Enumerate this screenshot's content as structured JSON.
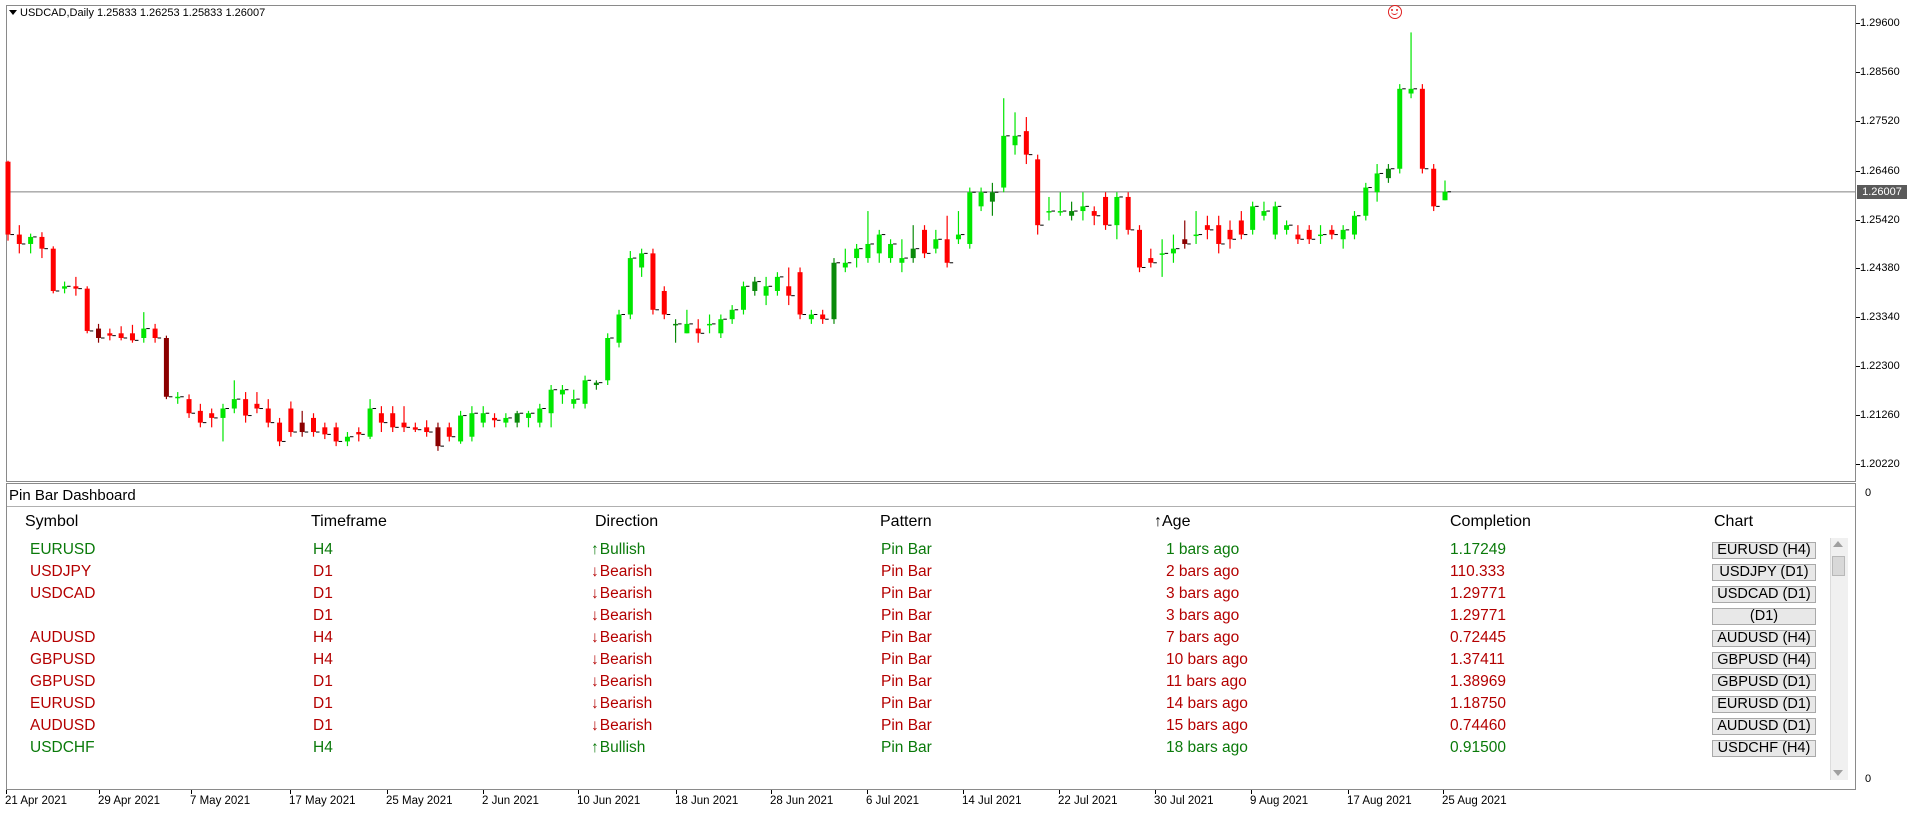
{
  "chart": {
    "header": "USDCAD,Daily  1.25833 1.26253 1.25833 1.26007",
    "current_price": "1.26007",
    "price_ticks": [
      "1.29600",
      "1.28560",
      "1.27520",
      "1.26460",
      "1.25420",
      "1.24380",
      "1.23340",
      "1.22300",
      "1.21260",
      "1.20220"
    ],
    "time_ticks": [
      "21 Apr 2021",
      "29 Apr 2021",
      "7 May 2021",
      "17 May 2021",
      "25 May 2021",
      "2 Jun 2021",
      "10 Jun 2021",
      "18 Jun 2021",
      "28 Jun 2021",
      "6 Jul 2021",
      "14 Jul 2021",
      "22 Jul 2021",
      "30 Jul 2021",
      "9 Aug 2021",
      "17 Aug 2021",
      "25 Aug 2021"
    ],
    "colors": {
      "bull": "#00e600",
      "bull_strong": "#0a8a0a",
      "bear": "#ff0000",
      "bear_strong": "#8b0000",
      "price_line": "#808080"
    },
    "candles": [
      [
        1.2665,
        1.2667,
        1.2497,
        1.251
      ],
      [
        1.251,
        1.253,
        1.247,
        1.249
      ],
      [
        1.249,
        1.2512,
        1.247,
        1.2505
      ],
      [
        1.2505,
        1.2515,
        1.246,
        1.248
      ],
      [
        1.248,
        1.2485,
        1.2385,
        1.239
      ],
      [
        1.2395,
        1.241,
        1.2385,
        1.24
      ],
      [
        1.24,
        1.242,
        1.238,
        1.2395
      ],
      [
        1.2395,
        1.24,
        1.23,
        1.2305
      ],
      [
        1.231,
        1.232,
        1.228,
        1.229
      ],
      [
        1.23,
        1.231,
        1.2285,
        1.2295
      ],
      [
        1.23,
        1.2315,
        1.2285,
        1.229
      ],
      [
        1.23,
        1.2318,
        1.228,
        1.2285
      ],
      [
        1.229,
        1.2345,
        1.228,
        1.231
      ],
      [
        1.231,
        1.232,
        1.228,
        1.229
      ],
      [
        1.229,
        1.2295,
        1.216,
        1.2165
      ],
      [
        1.2165,
        1.2175,
        1.215,
        1.2165
      ],
      [
        1.216,
        1.217,
        1.212,
        1.213
      ],
      [
        1.2135,
        1.215,
        1.21,
        1.211
      ],
      [
        1.213,
        1.214,
        1.21,
        1.212
      ],
      [
        1.212,
        1.215,
        1.207,
        1.214
      ],
      [
        1.214,
        1.22,
        1.213,
        1.216
      ],
      [
        1.216,
        1.2175,
        1.211,
        1.2125
      ],
      [
        1.215,
        1.2175,
        1.213,
        1.214
      ],
      [
        1.214,
        1.216,
        1.21,
        1.211
      ],
      [
        1.211,
        1.212,
        1.206,
        1.207
      ],
      [
        1.214,
        1.2155,
        1.208,
        1.209
      ],
      [
        1.211,
        1.2135,
        1.208,
        1.209
      ],
      [
        1.212,
        1.213,
        1.208,
        1.209
      ],
      [
        1.21,
        1.211,
        1.2075,
        1.2085
      ],
      [
        1.21,
        1.211,
        1.206,
        1.207
      ],
      [
        1.207,
        1.209,
        1.206,
        1.208
      ],
      [
        1.209,
        1.21,
        1.207,
        1.2085
      ],
      [
        1.208,
        1.216,
        1.2075,
        1.214
      ],
      [
        1.213,
        1.2145,
        1.209,
        1.211
      ],
      [
        1.213,
        1.2145,
        1.209,
        1.21
      ],
      [
        1.211,
        1.2145,
        1.209,
        1.21
      ],
      [
        1.21,
        1.211,
        1.209,
        1.2095
      ],
      [
        1.21,
        1.2115,
        1.208,
        1.209
      ],
      [
        1.21,
        1.211,
        1.205,
        1.206
      ],
      [
        1.21,
        1.211,
        1.207,
        1.208
      ],
      [
        1.207,
        1.2135,
        1.2065,
        1.2125
      ],
      [
        1.208,
        1.2145,
        1.207,
        1.213
      ],
      [
        1.211,
        1.2145,
        1.21,
        1.213
      ],
      [
        1.212,
        1.213,
        1.21,
        1.2115
      ],
      [
        1.211,
        1.213,
        1.21,
        1.212
      ],
      [
        1.211,
        1.2135,
        1.21,
        1.213
      ],
      [
        1.212,
        1.2135,
        1.21,
        1.213
      ],
      [
        1.211,
        1.215,
        1.21,
        1.214
      ],
      [
        1.213,
        1.219,
        1.21,
        1.218
      ],
      [
        1.217,
        1.219,
        1.215,
        1.218
      ],
      [
        1.215,
        1.218,
        1.214,
        1.216
      ],
      [
        1.215,
        1.221,
        1.214,
        1.22
      ],
      [
        1.219,
        1.22,
        1.218,
        1.2195
      ],
      [
        1.22,
        1.23,
        1.219,
        1.229
      ],
      [
        1.228,
        1.235,
        1.227,
        1.234
      ],
      [
        1.234,
        1.2475,
        1.233,
        1.246
      ],
      [
        1.244,
        1.248,
        1.242,
        1.247
      ],
      [
        1.247,
        1.248,
        1.234,
        1.235
      ],
      [
        1.239,
        1.24,
        1.233,
        1.234
      ],
      [
        1.232,
        1.233,
        1.228,
        1.232
      ],
      [
        1.23,
        1.235,
        1.23,
        1.232
      ],
      [
        1.231,
        1.233,
        1.228,
        1.23
      ],
      [
        1.232,
        1.234,
        1.23,
        1.232
      ],
      [
        1.23,
        1.234,
        1.229,
        1.233
      ],
      [
        1.233,
        1.236,
        1.232,
        1.235
      ],
      [
        1.235,
        1.241,
        1.234,
        1.24
      ],
      [
        1.239,
        1.242,
        1.238,
        1.241
      ],
      [
        1.238,
        1.242,
        1.236,
        1.24
      ],
      [
        1.239,
        1.243,
        1.238,
        1.242
      ],
      [
        1.24,
        1.244,
        1.236,
        1.238
      ],
      [
        1.243,
        1.244,
        1.233,
        1.234
      ],
      [
        1.233,
        1.235,
        1.232,
        1.234
      ],
      [
        1.234,
        1.235,
        1.232,
        1.233
      ],
      [
        1.233,
        1.246,
        1.232,
        1.245
      ],
      [
        1.244,
        1.248,
        1.243,
        1.245
      ],
      [
        1.246,
        1.249,
        1.244,
        1.248
      ],
      [
        1.246,
        1.256,
        1.245,
        1.249
      ],
      [
        1.247,
        1.252,
        1.245,
        1.251
      ],
      [
        1.246,
        1.25,
        1.245,
        1.249
      ],
      [
        1.245,
        1.25,
        1.243,
        1.246
      ],
      [
        1.246,
        1.253,
        1.245,
        1.248
      ],
      [
        1.252,
        1.253,
        1.246,
        1.247
      ],
      [
        1.248,
        1.252,
        1.247,
        1.25
      ],
      [
        1.25,
        1.255,
        1.244,
        1.245
      ],
      [
        1.25,
        1.256,
        1.249,
        1.251
      ],
      [
        1.249,
        1.261,
        1.248,
        1.26
      ],
      [
        1.257,
        1.261,
        1.256,
        1.26
      ],
      [
        1.258,
        1.262,
        1.255,
        1.26
      ],
      [
        1.261,
        1.28,
        1.26,
        1.272
      ],
      [
        1.27,
        1.277,
        1.268,
        1.272
      ],
      [
        1.273,
        1.276,
        1.266,
        1.268
      ],
      [
        1.267,
        1.268,
        1.251,
        1.253
      ],
      [
        1.256,
        1.259,
        1.254,
        1.256
      ],
      [
        1.256,
        1.26,
        1.255,
        1.256
      ],
      [
        1.255,
        1.258,
        1.254,
        1.256
      ],
      [
        1.256,
        1.26,
        1.254,
        1.257
      ],
      [
        1.256,
        1.257,
        1.253,
        1.255
      ],
      [
        1.259,
        1.26,
        1.252,
        1.253
      ],
      [
        1.253,
        1.26,
        1.25,
        1.259
      ],
      [
        1.259,
        1.26,
        1.251,
        1.252
      ],
      [
        1.252,
        1.253,
        1.243,
        1.244
      ],
      [
        1.246,
        1.248,
        1.244,
        1.245
      ],
      [
        1.247,
        1.25,
        1.242,
        1.247
      ],
      [
        1.247,
        1.251,
        1.245,
        1.248
      ],
      [
        1.25,
        1.254,
        1.248,
        1.249
      ],
      [
        1.251,
        1.256,
        1.249,
        1.251
      ],
      [
        1.253,
        1.255,
        1.25,
        1.252
      ],
      [
        1.253,
        1.255,
        1.247,
        1.249
      ],
      [
        1.252,
        1.254,
        1.248,
        1.25
      ],
      [
        1.254,
        1.256,
        1.25,
        1.251
      ],
      [
        1.252,
        1.258,
        1.251,
        1.257
      ],
      [
        1.255,
        1.258,
        1.254,
        1.256
      ],
      [
        1.251,
        1.258,
        1.25,
        1.257
      ],
      [
        1.252,
        1.254,
        1.251,
        1.253
      ],
      [
        1.251,
        1.253,
        1.249,
        1.25
      ],
      [
        1.252,
        1.253,
        1.249,
        1.25
      ],
      [
        1.251,
        1.253,
        1.249,
        1.251
      ],
      [
        1.252,
        1.253,
        1.25,
        1.251
      ],
      [
        1.25,
        1.253,
        1.248,
        1.252
      ],
      [
        1.251,
        1.256,
        1.25,
        1.255
      ],
      [
        1.255,
        1.262,
        1.254,
        1.261
      ],
      [
        1.26,
        1.266,
        1.258,
        1.264
      ],
      [
        1.263,
        1.266,
        1.262,
        1.265
      ],
      [
        1.265,
        1.283,
        1.264,
        1.282
      ],
      [
        1.281,
        1.294,
        1.28,
        1.282
      ],
      [
        1.282,
        1.283,
        1.264,
        1.265
      ],
      [
        1.265,
        1.266,
        1.256,
        1.257
      ],
      [
        1.2583,
        1.2625,
        1.2583,
        1.2601
      ]
    ]
  },
  "dashboard": {
    "title": "Pin Bar Dashboard",
    "columns": [
      "Symbol",
      "Timeframe",
      "Direction",
      "Pattern",
      "Age",
      "Completion",
      "Chart"
    ],
    "rows": [
      {
        "symbol": "EURUSD",
        "timeframe": "H4",
        "direction": "Bullish",
        "pattern": "Pin Bar",
        "age": "1 bars ago",
        "completion": "1.17249",
        "chart": "EURUSD (H4)",
        "tone": "bull"
      },
      {
        "symbol": "USDJPY",
        "timeframe": "D1",
        "direction": "Bearish",
        "pattern": "Pin Bar",
        "age": "2 bars ago",
        "completion": "110.333",
        "chart": "USDJPY (D1)",
        "tone": "bear"
      },
      {
        "symbol": "USDCAD",
        "timeframe": "D1",
        "direction": "Bearish",
        "pattern": "Pin Bar",
        "age": "3 bars ago",
        "completion": "1.29771",
        "chart": "USDCAD (D1)",
        "tone": "bear"
      },
      {
        "symbol": "",
        "timeframe": "D1",
        "direction": "Bearish",
        "pattern": "Pin Bar",
        "age": "3 bars ago",
        "completion": "1.29771",
        "chart": "(D1)",
        "tone": "bear"
      },
      {
        "symbol": "AUDUSD",
        "timeframe": "H4",
        "direction": "Bearish",
        "pattern": "Pin Bar",
        "age": "7 bars ago",
        "completion": "0.72445",
        "chart": "AUDUSD (H4)",
        "tone": "bear"
      },
      {
        "symbol": "GBPUSD",
        "timeframe": "H4",
        "direction": "Bearish",
        "pattern": "Pin Bar",
        "age": "10 bars ago",
        "completion": "1.37411",
        "chart": "GBPUSD (H4)",
        "tone": "bear"
      },
      {
        "symbol": "GBPUSD",
        "timeframe": "D1",
        "direction": "Bearish",
        "pattern": "Pin Bar",
        "age": "11 bars ago",
        "completion": "1.38969",
        "chart": "GBPUSD (D1)",
        "tone": "bear"
      },
      {
        "symbol": "EURUSD",
        "timeframe": "D1",
        "direction": "Bearish",
        "pattern": "Pin Bar",
        "age": "14 bars ago",
        "completion": "1.18750",
        "chart": "EURUSD (D1)",
        "tone": "bear"
      },
      {
        "symbol": "AUDUSD",
        "timeframe": "D1",
        "direction": "Bearish",
        "pattern": "Pin Bar",
        "age": "15 bars ago",
        "completion": "0.74460",
        "chart": "AUDUSD (D1)",
        "tone": "bear"
      },
      {
        "symbol": "USDCHF",
        "timeframe": "H4",
        "direction": "Bullish",
        "pattern": "Pin Bar",
        "age": "18 bars ago",
        "completion": "0.91500",
        "chart": "USDCHF (H4)",
        "tone": "bull"
      }
    ],
    "subwindow_ticks": [
      "0",
      "0"
    ]
  }
}
